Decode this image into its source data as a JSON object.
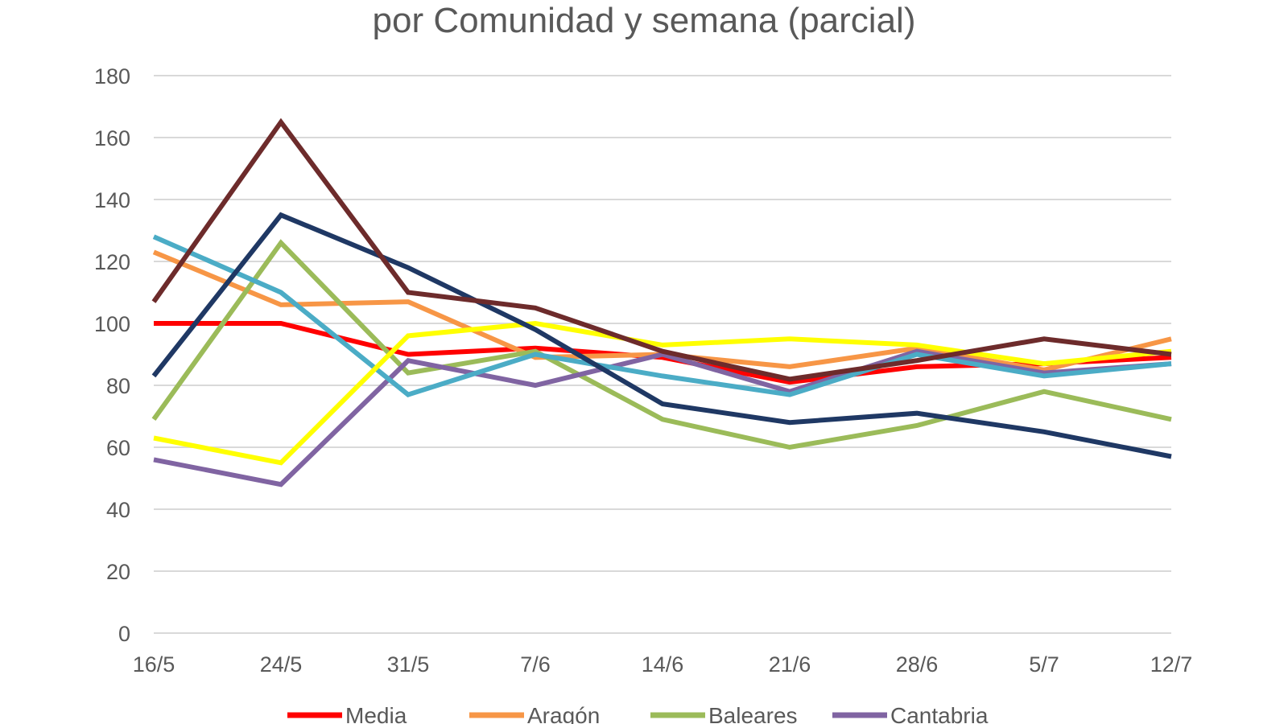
{
  "chart_data": {
    "type": "line",
    "title": "por Comunidad y semana (parcial)",
    "xlabel": "",
    "ylabel": "",
    "ylim": [
      0,
      180
    ],
    "yticks": [
      0,
      20,
      40,
      60,
      80,
      100,
      120,
      140,
      160,
      180
    ],
    "grid": true,
    "legend_position": "bottom",
    "categories": [
      "16/5",
      "24/5",
      "31/5",
      "7/6",
      "14/6",
      "21/6",
      "28/6",
      "5/7",
      "12/7"
    ],
    "series": [
      {
        "name": "Media",
        "color": "#ff0000",
        "in_legend": true,
        "values": [
          100,
          100,
          90,
          92,
          89,
          81,
          86,
          87,
          89
        ]
      },
      {
        "name": "Aragón",
        "color": "#f79646",
        "in_legend": true,
        "values": [
          123,
          106,
          107,
          89,
          90,
          86,
          92,
          85,
          95
        ]
      },
      {
        "name": "Baleares",
        "color": "#9bbb59",
        "in_legend": true,
        "values": [
          69,
          126,
          84,
          91,
          69,
          60,
          67,
          78,
          69
        ]
      },
      {
        "name": "Cantabria",
        "color": "#8064a2",
        "in_legend": true,
        "values": [
          56,
          48,
          88,
          80,
          90,
          78,
          91,
          84,
          87
        ]
      },
      {
        "name": "",
        "color": "#4bacc6",
        "in_legend": false,
        "values": [
          128,
          110,
          77,
          90,
          83,
          77,
          90,
          83,
          87
        ]
      },
      {
        "name": "",
        "color": "#ffff00",
        "in_legend": false,
        "values": [
          63,
          55,
          96,
          100,
          93,
          95,
          93,
          87,
          91
        ]
      },
      {
        "name": "",
        "color": "#1f3864",
        "in_legend": false,
        "values": [
          83,
          135,
          118,
          98,
          74,
          68,
          71,
          65,
          57
        ]
      },
      {
        "name": "",
        "color": "#6d2b2b",
        "in_legend": false,
        "values": [
          107,
          165,
          110,
          105,
          91,
          82,
          88,
          95,
          90
        ]
      }
    ]
  }
}
